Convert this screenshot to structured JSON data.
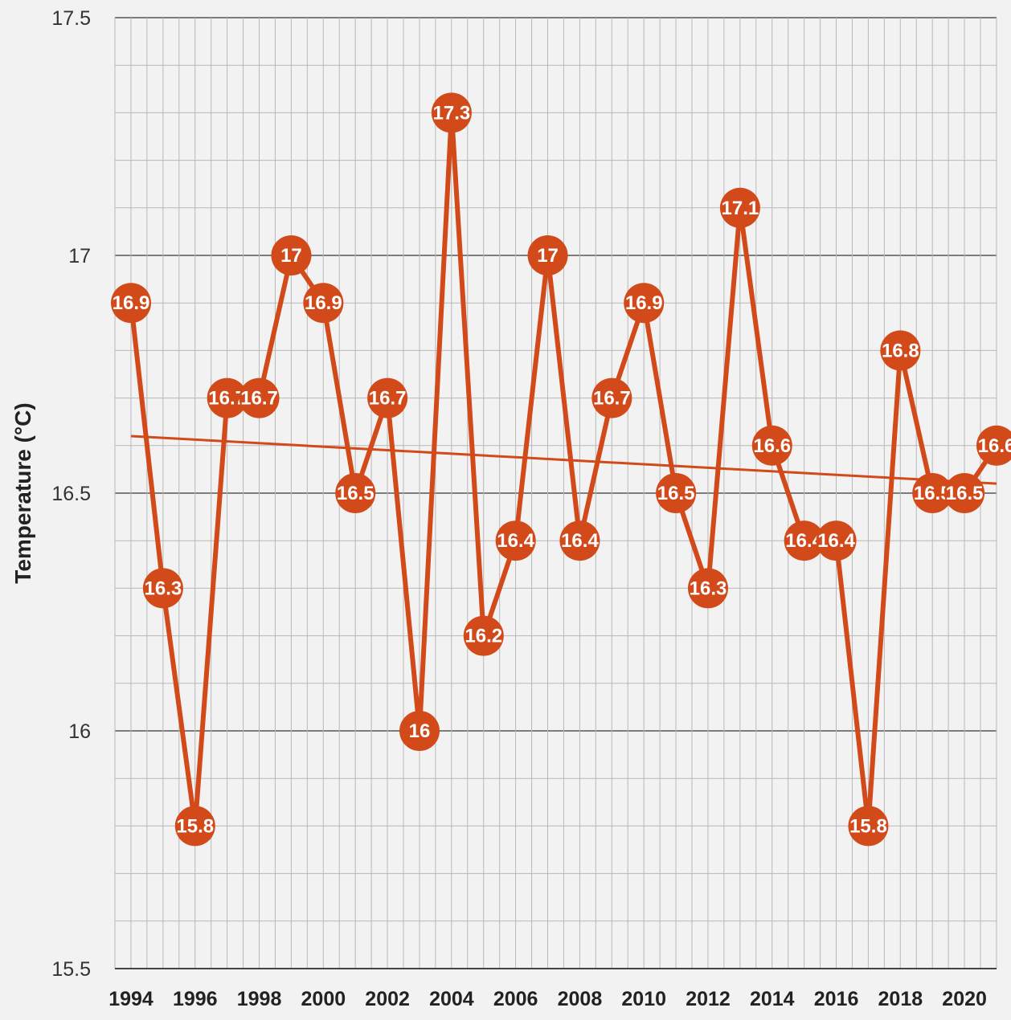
{
  "chart_data": {
    "type": "line",
    "title": "",
    "xlabel": "",
    "ylabel": "Temperature (°C)",
    "ylim": [
      15.5,
      17.5
    ],
    "y_ticks": [
      "17.5",
      "17",
      "16.5",
      "16",
      "15.5"
    ],
    "x_tick_labels": [
      "1994",
      "1996",
      "1998",
      "2000",
      "2002",
      "2004",
      "2006",
      "2008",
      "2010",
      "2012",
      "2014",
      "2016",
      "2018",
      "2020"
    ],
    "grid": true,
    "legend": "none",
    "x": [
      1994,
      1995,
      1996,
      1997,
      1998,
      1999,
      2000,
      2001,
      2002,
      2003,
      2004,
      2005,
      2006,
      2007,
      2008,
      2009,
      2010,
      2011,
      2012,
      2013,
      2014,
      2015,
      2016,
      2017,
      2018,
      2019,
      2020,
      2021
    ],
    "series": [
      {
        "values": [
          16.9,
          16.3,
          15.8,
          16.7,
          16.7,
          17,
          16.9,
          16.5,
          16.7,
          16,
          17.3,
          16.2,
          16.4,
          17,
          16.4,
          16.7,
          16.9,
          16.5,
          16.3,
          17.1,
          16.6,
          16.4,
          16.4,
          15.8,
          16.8,
          16.5,
          16.5,
          16.6
        ],
        "data_labels": [
          "16.9",
          "16.3",
          "15.8",
          "16.7",
          "16.7",
          "17",
          "16.9",
          "16.5",
          "16.7",
          "16",
          "17.3",
          "16.2",
          "16.4",
          "17",
          "16.4",
          "16.7",
          "16.9",
          "16.5",
          "16.3",
          "17.1",
          "16.6",
          "16.4",
          "16.4",
          "15.8",
          "16.8",
          "16.5",
          "16.5",
          "16.6"
        ],
        "color": "#d2491a"
      }
    ],
    "trendline": {
      "start": 16.62,
      "end": 16.52,
      "color": "#d2491a"
    },
    "colors": {
      "background": "#f2f2f2",
      "grid_major": "#555555",
      "grid_minor": "#b8b8b8",
      "marker": "#d2491a",
      "label_text": "#ffffff"
    }
  }
}
